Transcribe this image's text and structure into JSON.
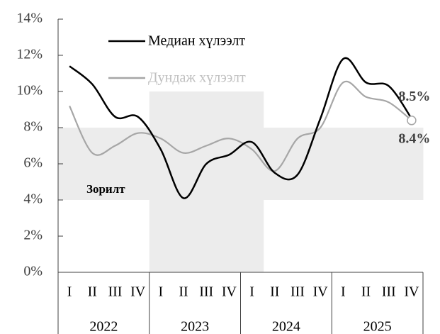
{
  "chart_data": {
    "type": "line",
    "categories": [
      "I",
      "II",
      "III",
      "IV",
      "I",
      "II",
      "III",
      "IV",
      "I",
      "II",
      "III",
      "IV",
      "I",
      "II",
      "III",
      "IV"
    ],
    "years": [
      "2022",
      "2023",
      "2024",
      "2025"
    ],
    "series": [
      {
        "name": "Медиан хүлээлт",
        "color": "#000000",
        "values": [
          11.4,
          10.4,
          8.6,
          8.6,
          6.8,
          4.1,
          6.0,
          6.5,
          7.2,
          5.5,
          5.4,
          8.5,
          11.8,
          10.5,
          10.3,
          8.5
        ],
        "value_labels": {
          "15": "8.5%"
        }
      },
      {
        "name": "Дундаж хүлээлт",
        "color": "#a6a6a6",
        "values": [
          9.2,
          6.6,
          7.0,
          7.7,
          7.4,
          6.6,
          7.0,
          7.4,
          6.8,
          5.6,
          7.4,
          8.0,
          10.5,
          9.7,
          9.4,
          8.4
        ],
        "value_labels": {
          "15": "8.4%"
        }
      }
    ],
    "target": {
      "name": "Зорилт",
      "color": "#ececec",
      "low": [
        4,
        4,
        4,
        4,
        0,
        0,
        0,
        0,
        0,
        4,
        4,
        4,
        4,
        4,
        4,
        4
      ],
      "high": [
        8,
        8,
        8,
        8,
        10,
        10,
        10,
        10,
        10,
        8,
        8,
        8,
        8,
        8,
        8,
        8
      ]
    },
    "ylim": [
      0,
      14
    ],
    "yticks": [
      {
        "value": 0,
        "label": "0%"
      },
      {
        "value": 2,
        "label": "2%"
      },
      {
        "value": 4,
        "label": "4%"
      },
      {
        "value": 6,
        "label": "6%"
      },
      {
        "value": 8,
        "label": "8%"
      },
      {
        "value": 10,
        "label": "10%"
      },
      {
        "value": 12,
        "label": "12%"
      },
      {
        "value": 14,
        "label": "14%"
      }
    ]
  }
}
